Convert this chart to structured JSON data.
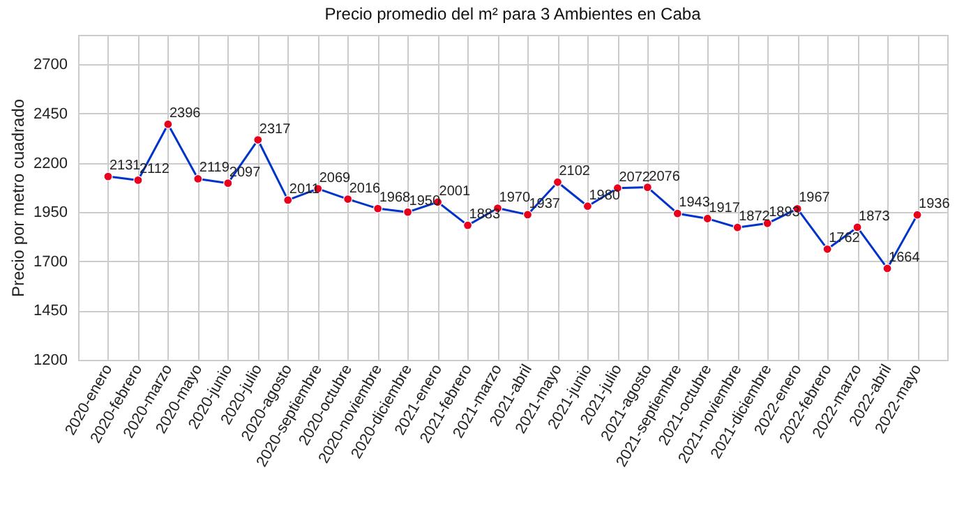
{
  "chart_data": {
    "type": "line",
    "title": "Precio promedio del m² para 3 Ambientes en Caba",
    "ylabel": "Precio por metro cuadrado",
    "categories": [
      "2020-enero",
      "2020-febrero",
      "2020-marzo",
      "2020-mayo",
      "2020-junio",
      "2020-julio",
      "2020-agosto",
      "2020-septiembre",
      "2020-octubre",
      "2020-noviembre",
      "2020-diciembre",
      "2021-enero",
      "2021-febrero",
      "2021-marzo",
      "2021-abril",
      "2021-mayo",
      "2021-junio",
      "2021-julio",
      "2021-agosto",
      "2021-septiembre",
      "2021-octubre",
      "2021-noviembre",
      "2021-diciembre",
      "2022-enero",
      "2022-febrero",
      "2022-marzo",
      "2022-abril",
      "2022-mayo"
    ],
    "series": [
      {
        "color": "#0033cc",
        "colors": [
          "#e8001c",
          "#e8001c",
          "#e8001c",
          "#e8001c",
          "#e8001c",
          "#e8001c",
          "#e8001c",
          "#e8001c",
          "#e8001c",
          "#e8001c",
          "#e8001c",
          "#e8001c",
          "#e8001c",
          "#e8001c",
          "#e8001c",
          "#e8001c",
          "#e8001c",
          "#e8001c",
          "#e8001c",
          "#e8001c",
          "#e8001c",
          "#e8001c",
          "#e8001c",
          "#e8001c",
          "#e8001c",
          "#e8001c",
          "#e8001c",
          "#e8001c"
        ],
        "values": [
          2131,
          2112,
          2396,
          2119,
          2097,
          2317,
          2011,
          2069,
          2016,
          1968,
          1950,
          2001,
          1883,
          1970,
          1937,
          2102,
          1980,
          2072,
          2076,
          1943,
          1917,
          1872,
          1893,
          1967,
          1762,
          1873,
          1664,
          1936
        ]
      }
    ],
    "marker": "circle",
    "data_labels": true,
    "grid": true,
    "ylim": [
      1200,
      2850
    ],
    "yticks": [
      1200,
      1450,
      1700,
      1950,
      2200,
      2450,
      2700
    ]
  }
}
